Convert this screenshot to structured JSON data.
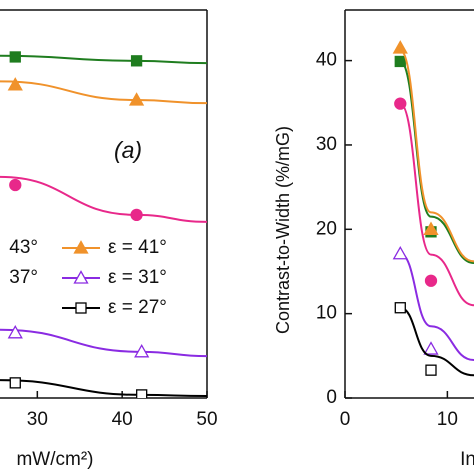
{
  "chart_data": [
    {
      "type": "line",
      "panel_label": "(a)",
      "xlabel": "mW/cm²)",
      "xlim": [
        25.6,
        50
      ],
      "ylim": [
        0,
        100
      ],
      "xticks": [
        30,
        40,
        50
      ],
      "series": [
        {
          "name": "43°",
          "color": "#1f7d1f",
          "marker": "square",
          "filled": true,
          "x": [
            27.4,
            41.7
          ],
          "values": [
            87.9,
            86.9
          ],
          "fit_x": [
            25.6,
            41.7,
            50
          ],
          "fit_values": [
            88.2,
            86.9,
            86.3
          ]
        },
        {
          "name": "ε = 41°",
          "color": "#f0922b",
          "marker": "triangle",
          "filled": true,
          "x": [
            27.4,
            41.7
          ],
          "values": [
            80.7,
            76.8
          ],
          "fit_x": [
            25.6,
            41.7,
            50
          ],
          "fit_values": [
            81.6,
            76.8,
            76.0
          ]
        },
        {
          "name": "37°",
          "color": "#e8288a",
          "marker": "circle",
          "filled": true,
          "x": [
            27.4,
            41.7
          ],
          "values": [
            54.9,
            47.2
          ],
          "fit_x": [
            25.6,
            41.7,
            50
          ],
          "fit_values": [
            57.0,
            47.2,
            45.4
          ]
        },
        {
          "name": "ε = 31°",
          "color": "#8a2be2",
          "marker": "triangle",
          "filled": false,
          "x": [
            27.4,
            42.3
          ],
          "values": [
            16.8,
            11.9
          ],
          "fit_x": [
            25.6,
            42.3,
            50
          ],
          "fit_values": [
            17.6,
            11.9,
            10.8
          ]
        },
        {
          "name": "ε = 27°",
          "color": "#000000",
          "marker": "square",
          "filled": false,
          "x": [
            27.4,
            42.3
          ],
          "values": [
            3.9,
            0.8
          ],
          "fit_x": [
            25.6,
            42.3,
            50
          ],
          "fit_values": [
            4.6,
            0.8,
            0.5
          ]
        }
      ]
    },
    {
      "type": "line",
      "ylabel": "Contrast-to-Width (%/mG)",
      "xlabel": "In",
      "xlim": [
        0,
        12.6
      ],
      "ylim": [
        0,
        46
      ],
      "xticks": [
        0,
        10
      ],
      "yticks": [
        0,
        10,
        20,
        30,
        40
      ],
      "series": [
        {
          "color": "#1f7d1f",
          "marker": "square",
          "filled": true,
          "x": [
            5.4,
            8.4
          ],
          "values": [
            39.9,
            19.7
          ],
          "fit_x": [
            5.4,
            8.4,
            12.6
          ],
          "fit_values": [
            39.9,
            21.5,
            16.0
          ]
        },
        {
          "color": "#f0922b",
          "marker": "triangle",
          "filled": true,
          "x": [
            5.4,
            8.4
          ],
          "values": [
            41.5,
            20.0
          ],
          "fit_x": [
            5.4,
            8.4,
            12.6
          ],
          "fit_values": [
            41.2,
            22.0,
            16.2
          ]
        },
        {
          "color": "#e8288a",
          "marker": "circle",
          "filled": true,
          "x": [
            5.4,
            8.4
          ],
          "values": [
            34.9,
            13.9
          ],
          "fit_x": [
            5.4,
            8.4,
            12.6
          ],
          "fit_values": [
            34.9,
            17.0,
            11.0
          ]
        },
        {
          "color": "#8a2be2",
          "marker": "triangle",
          "filled": false,
          "x": [
            5.4,
            8.4
          ],
          "values": [
            17.1,
            5.8
          ],
          "fit_x": [
            5.4,
            8.4,
            12.6
          ],
          "fit_values": [
            17.1,
            8.5,
            4.5
          ]
        },
        {
          "color": "#000000",
          "marker": "square",
          "filled": false,
          "x": [
            5.4,
            8.4
          ],
          "values": [
            10.7,
            3.3
          ],
          "fit_x": [
            5.4,
            8.4,
            12.6
          ],
          "fit_values": [
            10.7,
            5.0,
            2.7
          ]
        }
      ]
    }
  ]
}
